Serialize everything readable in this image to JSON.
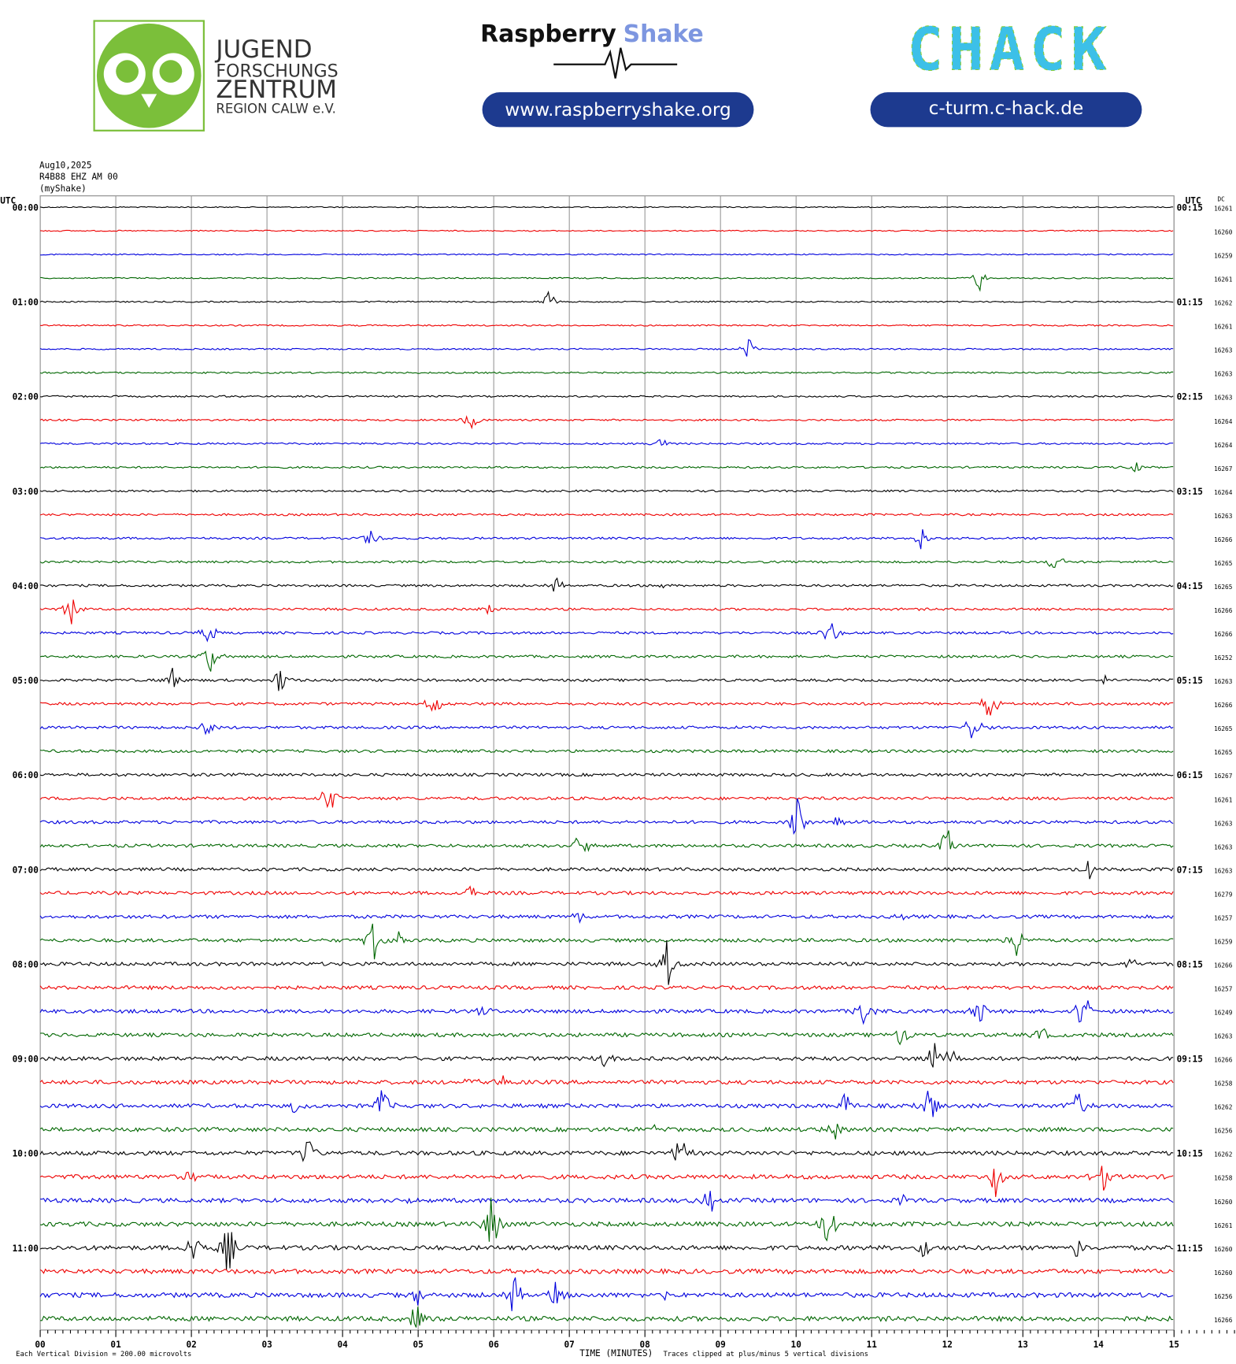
{
  "header": {
    "jfz_lines": [
      "JUGEND",
      "FORSCHUNGS",
      "ZENTRUM",
      "REGION CALW e.V."
    ],
    "rs_name": [
      "Raspberry",
      "Shake"
    ],
    "rs_url": "www.raspberryshake.org",
    "chack_logo": "CHACK",
    "chack_url": "c-turm.c-hack.de"
  },
  "station": [
    "Aug10,2025",
    "R4B88 EHZ AM 00",
    "(myShake)"
  ],
  "axis": {
    "left_unit": "UTC",
    "right_unit": "UTC",
    "dc_label": "DC",
    "left_labels": [
      "00:00",
      "01:00",
      "02:00",
      "03:00",
      "04:00",
      "05:00",
      "06:00",
      "07:00",
      "08:00",
      "09:00",
      "10:00",
      "11:00"
    ],
    "right_labels": [
      "00:15",
      "01:15",
      "02:15",
      "03:15",
      "04:15",
      "05:15",
      "06:15",
      "07:15",
      "08:15",
      "09:15",
      "10:15",
      "11:15"
    ],
    "dc_values": [
      16261,
      16260,
      16259,
      16261,
      16262,
      16261,
      16263,
      16263,
      16263,
      16264,
      16264,
      16267,
      16264,
      16263,
      16266,
      16265,
      16265,
      16266,
      16266,
      16252,
      16263,
      16266,
      16265,
      16265,
      16267,
      16261,
      16263,
      16263,
      16263,
      16279,
      16257,
      16259,
      16266,
      16257,
      16249,
      16263,
      16266,
      16258,
      16262,
      16256,
      16262,
      16258,
      16260,
      16261,
      16260,
      16260,
      16256,
      16266
    ],
    "x_ticks": [
      "00",
      "01",
      "02",
      "03",
      "04",
      "05",
      "06",
      "07",
      "08",
      "09",
      "10",
      "11",
      "12",
      "13",
      "14",
      "15"
    ],
    "x_label": "TIME (MINUTES)"
  },
  "footer": {
    "scale_note": "Each Vertical Division =  200.00 microvolts",
    "clip_note": "Traces clipped at plus/minus 5 vertical divisions"
  }
}
